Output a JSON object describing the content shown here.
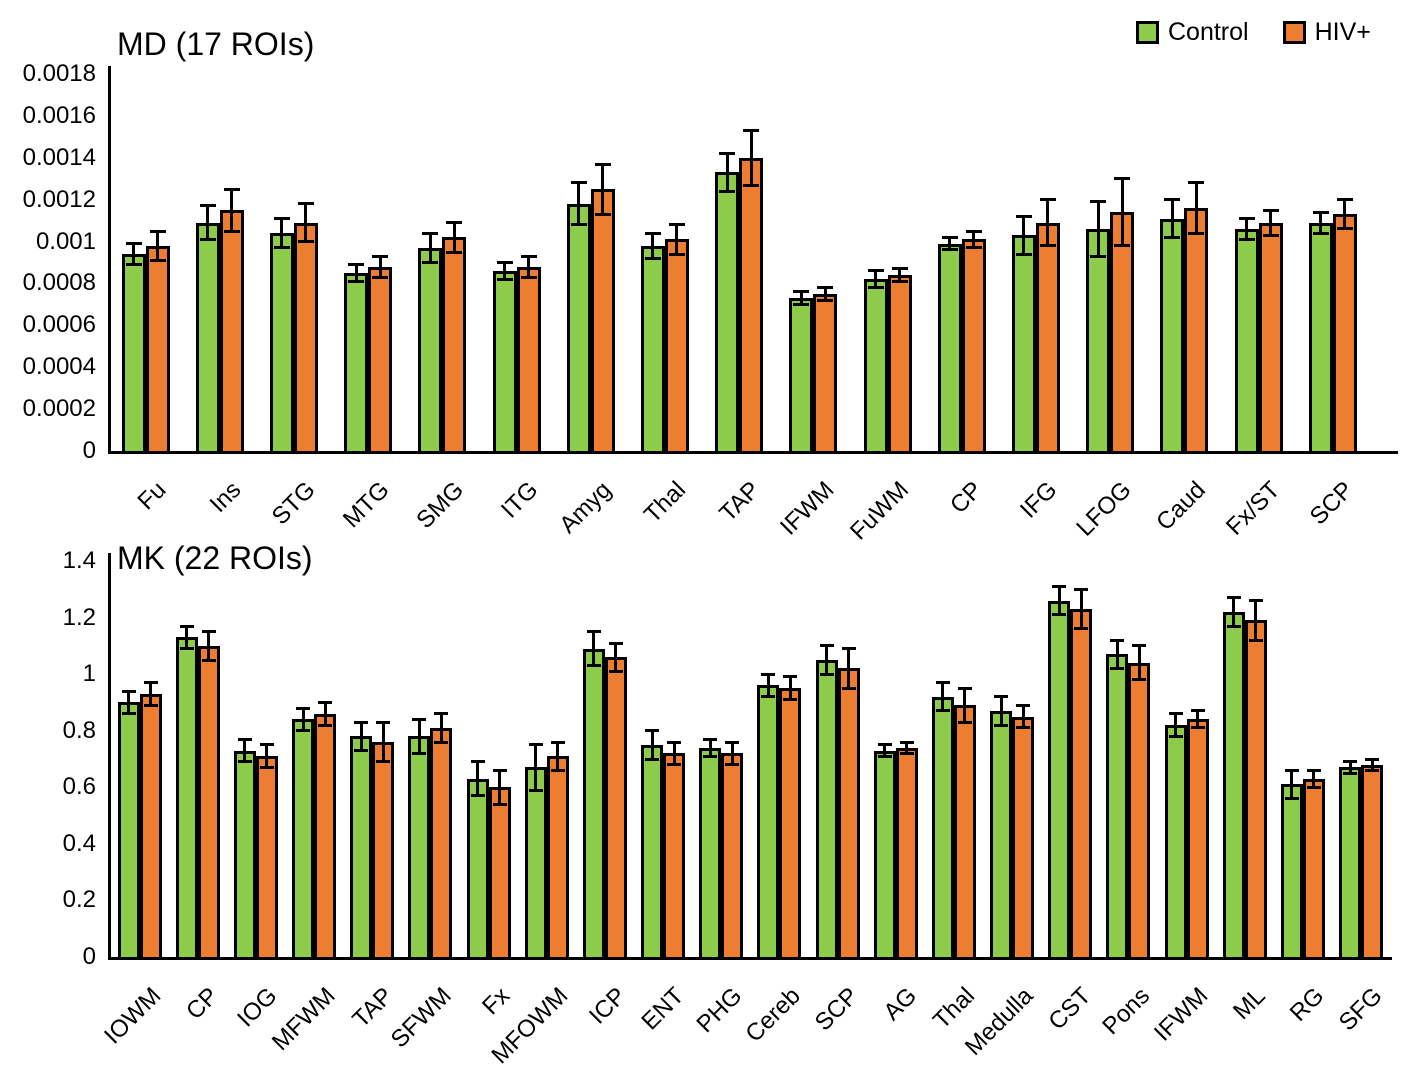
{
  "legend": {
    "items": [
      {
        "label": "Control",
        "color": "#8dcb4a"
      },
      {
        "label": "HIV+",
        "color": "#ed7d31"
      }
    ]
  },
  "chart_data": [
    {
      "type": "bar",
      "title": "MD (17 ROIs)",
      "xlabel": "",
      "ylabel": "",
      "ylim": [
        0,
        0.0018
      ],
      "grid": false,
      "legend_position": "top-right",
      "error_bars": true,
      "yticks": [
        {
          "v": 0.0018,
          "label": "0.0018"
        },
        {
          "v": 0.0016,
          "label": "0.0016"
        },
        {
          "v": 0.0014,
          "label": "0.0014"
        },
        {
          "v": 0.0012,
          "label": "0.0012"
        },
        {
          "v": 0.001,
          "label": "0.001"
        },
        {
          "v": 0.0008,
          "label": "0.0008"
        },
        {
          "v": 0.0006,
          "label": "0.0006"
        },
        {
          "v": 0.0004,
          "label": "0.0004"
        },
        {
          "v": 0.0002,
          "label": "0.0002"
        },
        {
          "v": 0,
          "label": "0"
        }
      ],
      "categories": [
        "Fu",
        "Ins",
        "STG",
        "MTG",
        "SMG",
        "ITG",
        "Amyg",
        "Thal",
        "TAP",
        "IFWM",
        "FuWM",
        "CP",
        "IFG",
        "LFOG",
        "Caud",
        "Fx/ST",
        "SCP"
      ],
      "series": [
        {
          "name": "Control",
          "color": "#8dcb4a",
          "values": [
            0.00094,
            0.00109,
            0.00104,
            0.00085,
            0.00097,
            0.00086,
            0.00118,
            0.00098,
            0.00133,
            0.00073,
            0.00082,
            0.00099,
            0.00103,
            0.00106,
            0.00111,
            0.00106,
            0.00109
          ],
          "errors": [
            5e-05,
            8e-05,
            7e-05,
            4e-05,
            7e-05,
            4e-05,
            0.0001,
            6e-05,
            9e-05,
            3e-05,
            4e-05,
            3e-05,
            9e-05,
            0.00013,
            9e-05,
            5e-05,
            5e-05
          ]
        },
        {
          "name": "HIV+",
          "color": "#ed7d31",
          "values": [
            0.00098,
            0.00115,
            0.00109,
            0.00088,
            0.00102,
            0.00088,
            0.00125,
            0.00101,
            0.0014,
            0.00075,
            0.00084,
            0.00101,
            0.00109,
            0.00114,
            0.00116,
            0.00109,
            0.00113
          ],
          "errors": [
            7e-05,
            0.0001,
            9e-05,
            5e-05,
            7e-05,
            5e-05,
            0.00012,
            7e-05,
            0.00013,
            3e-05,
            3e-05,
            4e-05,
            0.00011,
            0.00016,
            0.00012,
            6e-05,
            7e-05
          ]
        }
      ]
    },
    {
      "type": "bar",
      "title": "MK (22 ROIs)",
      "xlabel": "",
      "ylabel": "",
      "ylim": [
        0,
        1.4
      ],
      "grid": false,
      "legend_position": "shared-top-right",
      "error_bars": true,
      "yticks": [
        {
          "v": 1.4,
          "label": "1.4"
        },
        {
          "v": 1.2,
          "label": "1.2"
        },
        {
          "v": 1.0,
          "label": "1"
        },
        {
          "v": 0.8,
          "label": "0.8"
        },
        {
          "v": 0.6,
          "label": "0.6"
        },
        {
          "v": 0.4,
          "label": "0.4"
        },
        {
          "v": 0.2,
          "label": "0.2"
        },
        {
          "v": 0,
          "label": "0"
        }
      ],
      "categories": [
        "IOWM",
        "CP",
        "IOG",
        "MFWM",
        "TAP",
        "SFWM",
        "Fx",
        "MFOWM",
        "ICP",
        "ENT",
        "PHG",
        "Cereb",
        "SCP",
        "AG",
        "Thal",
        "Medulla",
        "CST",
        "Pons",
        "IFWM",
        "ML",
        "RG",
        "SFG"
      ],
      "series": [
        {
          "name": "Control",
          "color": "#8dcb4a",
          "values": [
            0.9,
            1.13,
            0.73,
            0.84,
            0.78,
            0.78,
            0.63,
            0.67,
            1.09,
            0.75,
            0.74,
            0.96,
            1.05,
            0.73,
            0.92,
            0.87,
            1.26,
            1.07,
            0.82,
            1.22,
            0.61,
            0.67
          ],
          "errors": [
            0.04,
            0.04,
            0.04,
            0.04,
            0.05,
            0.06,
            0.06,
            0.08,
            0.06,
            0.05,
            0.03,
            0.04,
            0.05,
            0.02,
            0.05,
            0.05,
            0.05,
            0.05,
            0.04,
            0.05,
            0.05,
            0.02
          ]
        },
        {
          "name": "HIV+",
          "color": "#ed7d31",
          "values": [
            0.93,
            1.1,
            0.71,
            0.86,
            0.76,
            0.81,
            0.6,
            0.71,
            1.06,
            0.72,
            0.72,
            0.95,
            1.02,
            0.74,
            0.89,
            0.85,
            1.23,
            1.04,
            0.84,
            1.19,
            0.63,
            0.68
          ],
          "errors": [
            0.04,
            0.05,
            0.04,
            0.04,
            0.07,
            0.05,
            0.06,
            0.05,
            0.05,
            0.04,
            0.04,
            0.04,
            0.07,
            0.02,
            0.06,
            0.04,
            0.07,
            0.06,
            0.03,
            0.07,
            0.03,
            0.02
          ]
        }
      ]
    }
  ]
}
